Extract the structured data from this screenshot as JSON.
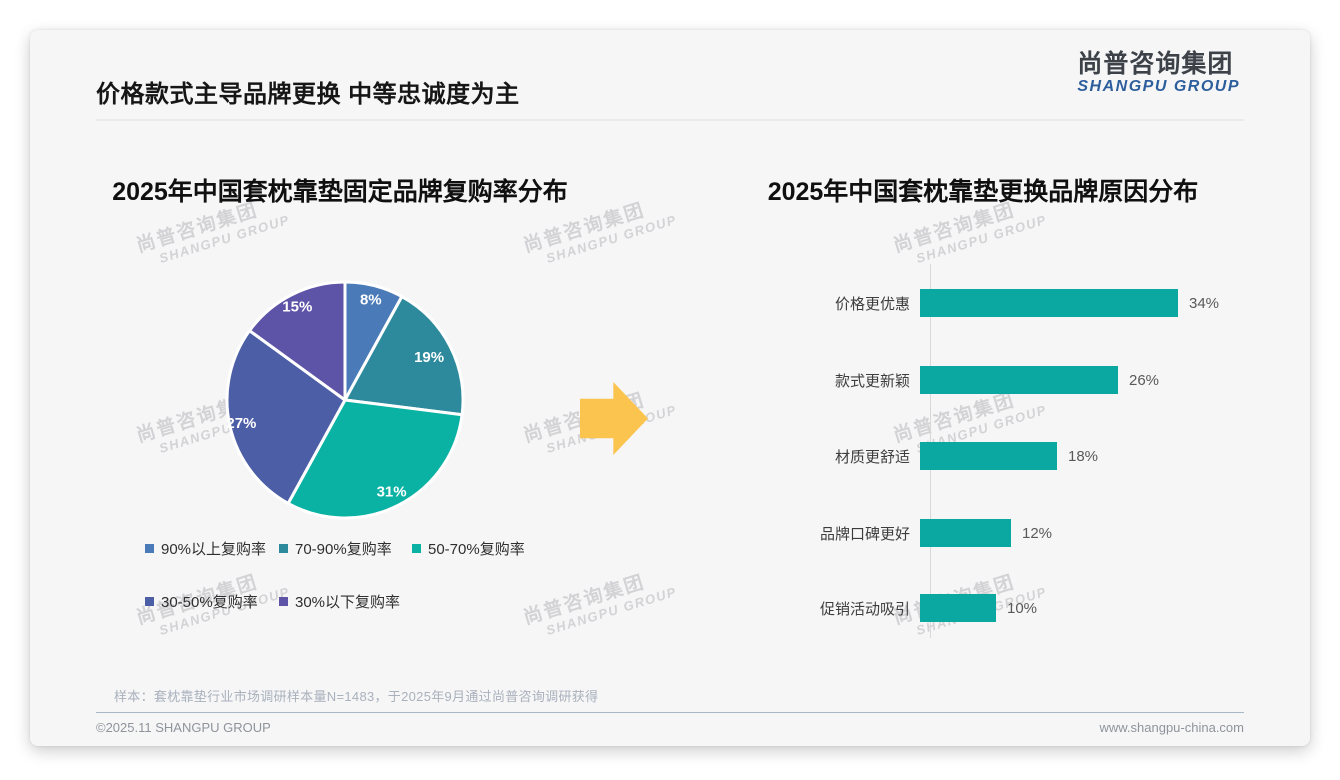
{
  "page": {
    "title": "价格款式主导品牌更换 中等忠诚度为主",
    "logo": {
      "cn": "尚普咨询集团",
      "en": "SHANGPU GROUP"
    },
    "watermark": {
      "cn": "尚普咨询集团",
      "en": "SHANGPU GROUP"
    },
    "note": "样本：套枕靠垫行业市场调研样本量N=1483，于2025年9月通过尚普咨询调研获得",
    "footer_left": "©2025.11 SHANGPU GROUP",
    "footer_right": "www.shangpu-china.com"
  },
  "colors": {
    "pie": [
      "#4a7ab8",
      "#2d8a9c",
      "#0ab2a3",
      "#4c5ea6",
      "#5d54a7"
    ],
    "bar": "#0aa8a0",
    "arrow": "#fbc44e"
  },
  "chart_data": [
    {
      "type": "pie",
      "title": "2025年中国套枕靠垫固定品牌复购率分布",
      "labels": [
        "90%以上复购率",
        "70-90%复购率",
        "50-70%复购率",
        "30-50%复购率",
        "30%以下复购率"
      ],
      "values": [
        8,
        19,
        31,
        27,
        15
      ],
      "value_suffix": "%",
      "colors": [
        "#4a7ab8",
        "#2d8a9c",
        "#0ab2a3",
        "#4c5ea6",
        "#5d54a7"
      ],
      "start_angle_deg": 0,
      "direction": "clockwise",
      "legend_position": "bottom",
      "slice_label_format": [
        "8%",
        "19%",
        "31%",
        "27%",
        "15%"
      ]
    },
    {
      "type": "bar",
      "orientation": "horizontal",
      "title": "2025年中国套枕靠垫更换品牌原因分布",
      "categories": [
        "价格更优惠",
        "款式更新颖",
        "材质更舒适",
        "品牌口碑更好",
        "促销活动吸引"
      ],
      "values": [
        34,
        26,
        18,
        12,
        10
      ],
      "value_suffix": "%",
      "bar_color": "#0aa8a0",
      "xlim": [
        0,
        40
      ],
      "grid": false,
      "value_labels": "outside-end"
    }
  ]
}
